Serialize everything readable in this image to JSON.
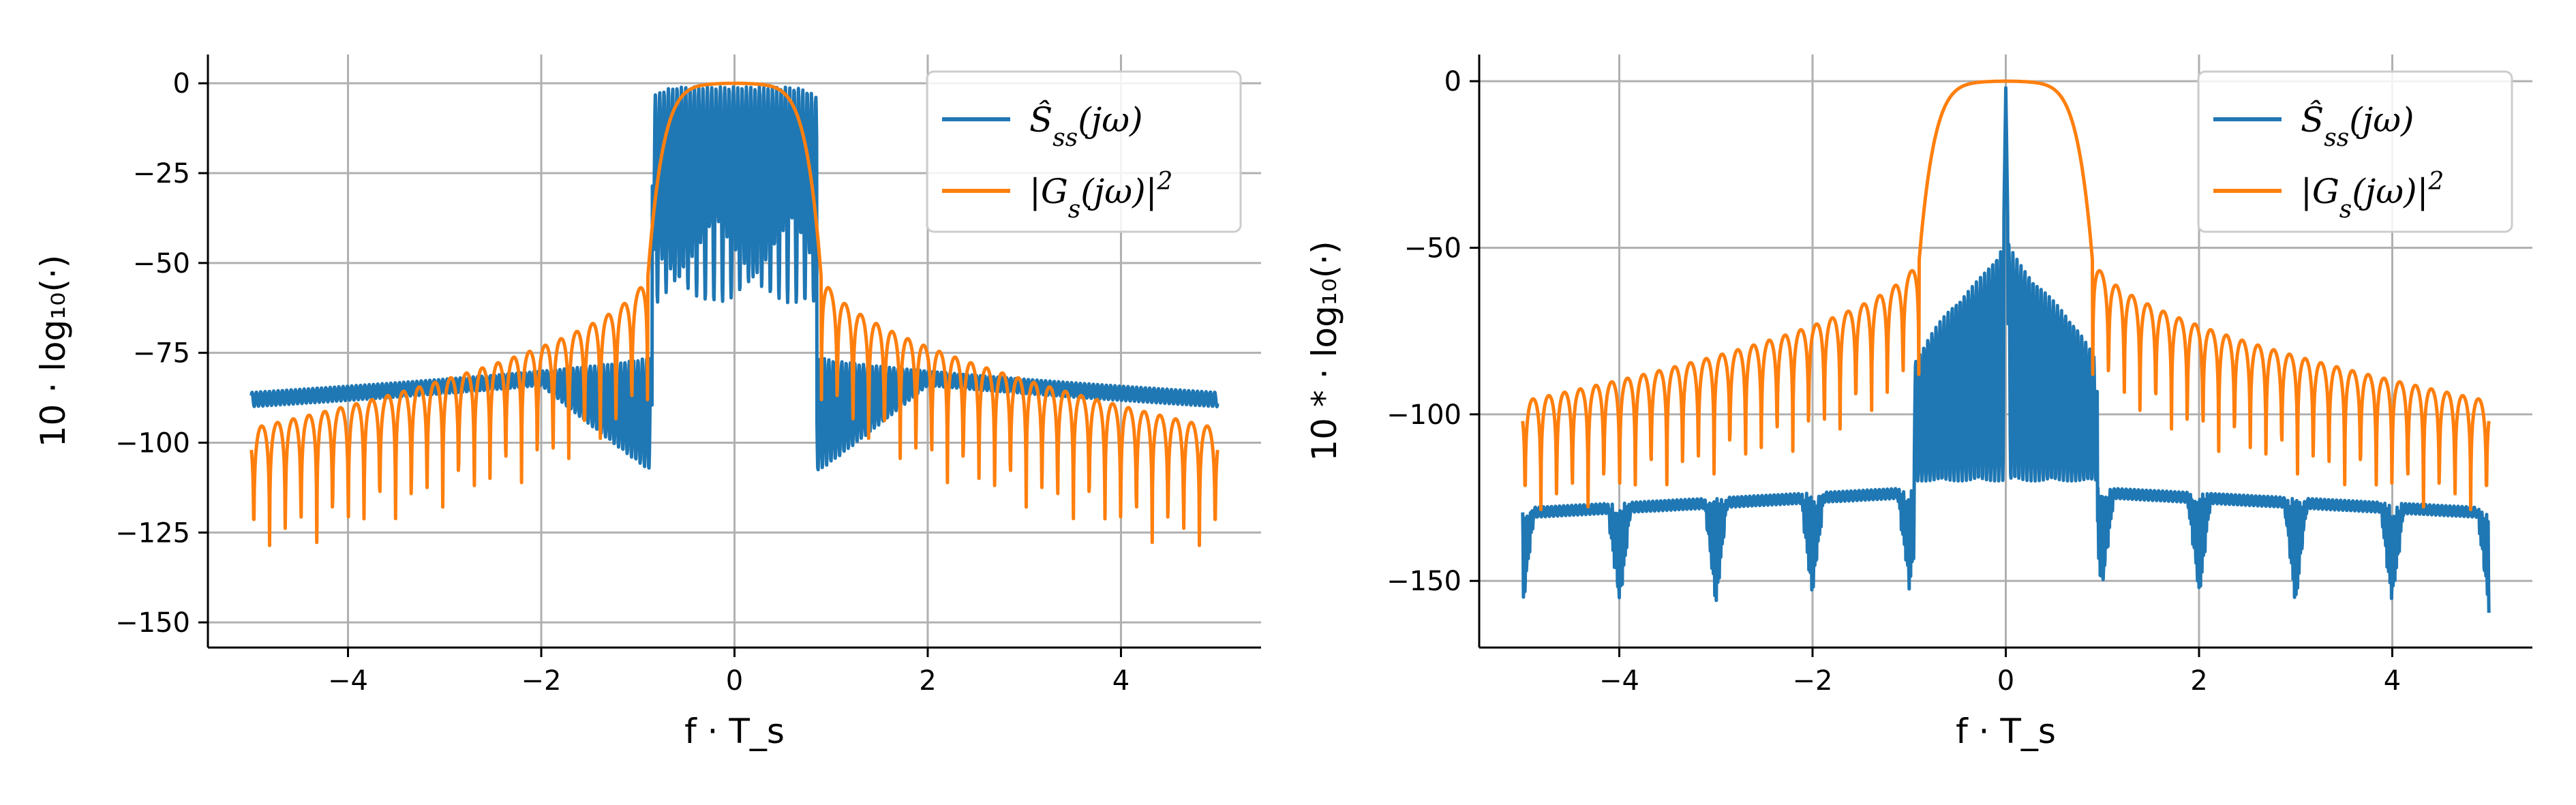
{
  "chart_data": [
    {
      "type": "line",
      "xlabel": "f · T_s",
      "ylabel": "10 · log₁₀(·)",
      "xlim": [
        -5.45,
        5.45
      ],
      "ylim": [
        -157,
        8
      ],
      "x_ticks": [
        -4,
        -2,
        0,
        2,
        4
      ],
      "x_tick_labels": [
        "−4",
        "−2",
        "0",
        "2",
        "4"
      ],
      "y_ticks": [
        0,
        -25,
        -50,
        -75,
        -100,
        -125,
        -150
      ],
      "y_tick_labels": [
        "0",
        "−25",
        "−50",
        "−75",
        "−100",
        "−125",
        "−150"
      ],
      "grid": true,
      "legend_position": "top-right",
      "x_range": [
        -5,
        5
      ],
      "series": [
        {
          "name": "Ŝss(jω)",
          "color": "#1f77b4",
          "description_points": {
            "x": [
              -5,
              -4,
              -3,
              -2,
              -1.5,
              -1,
              -0.9,
              -0.5,
              0,
              0.5,
              0.9,
              1,
              1.5,
              2,
              3,
              4,
              5
            ],
            "y": [
              -86,
              -85,
              -84,
              -82,
              -80,
              -76,
              -50,
              -1,
              0,
              -1,
              -50,
              -76,
              -80,
              -82,
              -84,
              -85,
              -86
            ]
          }
        },
        {
          "name": "|Gs(jω)|²",
          "color": "#ff7f0e",
          "description_points": {
            "x": [
              -5,
              -4,
              -3,
              -2,
              -1,
              -0.9,
              -0.5,
              0,
              0.5,
              0.9,
              1,
              2,
              3,
              4,
              5
            ],
            "y": [
              -92,
              -91,
              -90,
              -86,
              -58,
              -52,
              -3,
              0,
              -3,
              -52,
              -58,
              -86,
              -90,
              -91,
              -92
            ]
          }
        }
      ],
      "legend_entries": [
        {
          "math": "Ŝ",
          "sub": "ss",
          "rest": "(jω)"
        },
        {
          "math": "|G",
          "sub": "s",
          "rest": "(jω)|",
          "sup": "2"
        }
      ]
    },
    {
      "type": "line",
      "xlabel": "f · T_s",
      "ylabel": "10 * · log₁₀(·)",
      "xlim": [
        -5.45,
        5.45
      ],
      "ylim": [
        -170,
        8
      ],
      "x_ticks": [
        -4,
        -2,
        0,
        2,
        4
      ],
      "x_tick_labels": [
        "−4",
        "−2",
        "0",
        "2",
        "4"
      ],
      "y_ticks": [
        0,
        -50,
        -100,
        -150
      ],
      "y_tick_labels": [
        "0",
        "−50",
        "−100",
        "−150"
      ],
      "grid": true,
      "legend_position": "top-right",
      "x_range": [
        -5,
        5
      ],
      "series": [
        {
          "name": "Ŝss(jω)",
          "color": "#1f77b4",
          "description_points": {
            "x": [
              -5,
              -4,
              -3,
              -2,
              -1,
              -0.9,
              -0.5,
              0,
              0.5,
              0.9,
              1,
              2,
              3,
              4,
              5
            ],
            "y": [
              -130,
              -129,
              -128,
              -126,
              -122,
              -115,
              -75,
              0,
              -75,
              -115,
              -122,
              -126,
              -128,
              -129,
              -130
            ]
          }
        },
        {
          "name": "|Gs(jω)|²",
          "color": "#ff7f0e",
          "description_points": {
            "x": [
              -5,
              -4,
              -3,
              -2,
              -1,
              -0.9,
              -0.5,
              0,
              0.5,
              0.9,
              1,
              2,
              3,
              4,
              5
            ],
            "y": [
              -93,
              -92,
              -90,
              -86,
              -58,
              -52,
              -3,
              0,
              -3,
              -52,
              -58,
              -86,
              -90,
              -92,
              -93
            ]
          }
        }
      ],
      "legend_entries": [
        {
          "math": "Ŝ",
          "sub": "ss",
          "rest": "(jω)"
        },
        {
          "math": "|G",
          "sub": "s",
          "rest": "(jω)|",
          "sup": "2"
        }
      ]
    }
  ]
}
